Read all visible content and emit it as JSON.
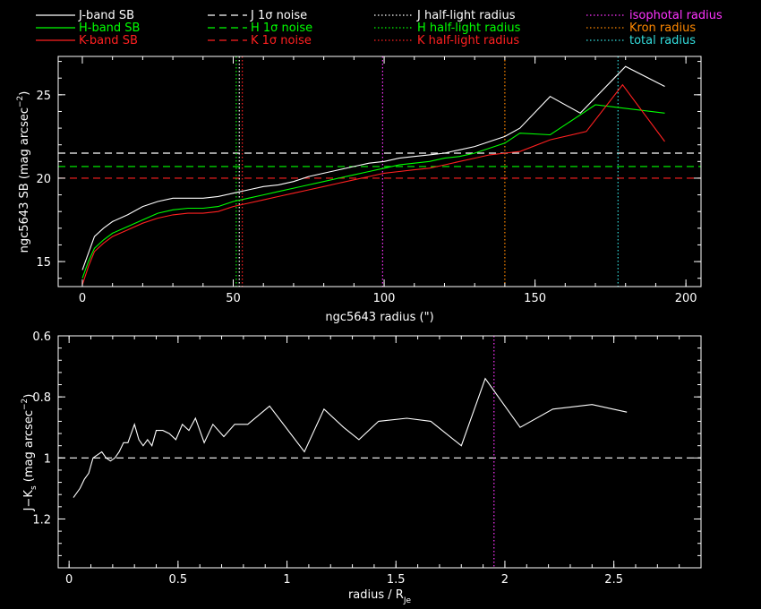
{
  "chart_data": [
    {
      "type": "line",
      "xlabel": "ngc5643 radius (\")",
      "ylabel": "ngc5643 SB (mag arcsec",
      "ylabel_sup": "−2",
      "ylabel_close": ")",
      "xlim": [
        -8,
        205
      ],
      "ylim": [
        27.3,
        13.5
      ],
      "y_inverted": true,
      "xticks": [
        0,
        50,
        100,
        150,
        200
      ],
      "yticks": [
        15,
        20,
        25
      ],
      "series": [
        {
          "name": "J-band SB",
          "color": "#ffffff",
          "style": "solid",
          "points": [
            [
              0,
              14.5
            ],
            [
              2,
              15.5
            ],
            [
              4,
              16.5
            ],
            [
              7,
              17
            ],
            [
              10,
              17.4
            ],
            [
              15,
              17.8
            ],
            [
              20,
              18.3
            ],
            [
              25,
              18.6
            ],
            [
              30,
              18.8
            ],
            [
              35,
              18.8
            ],
            [
              40,
              18.8
            ],
            [
              45,
              18.9
            ],
            [
              50,
              19.1
            ],
            [
              55,
              19.3
            ],
            [
              60,
              19.5
            ],
            [
              65,
              19.6
            ],
            [
              70,
              19.8
            ],
            [
              75,
              20.1
            ],
            [
              80,
              20.3
            ],
            [
              85,
              20.5
            ],
            [
              90,
              20.7
            ],
            [
              95,
              20.9
            ],
            [
              100,
              21.0
            ],
            [
              105,
              21.2
            ],
            [
              110,
              21.3
            ],
            [
              115,
              21.4
            ],
            [
              120,
              21.5
            ],
            [
              125,
              21.7
            ],
            [
              130,
              21.9
            ],
            [
              135,
              22.2
            ],
            [
              140,
              22.5
            ],
            [
              145,
              23
            ],
            [
              155,
              24.9
            ],
            [
              165,
              23.9
            ],
            [
              180,
              26.7
            ],
            [
              193,
              25.5
            ]
          ]
        },
        {
          "name": "H-band SB",
          "color": "#00ff00",
          "style": "solid",
          "points": [
            [
              0,
              14.0
            ],
            [
              2,
              15.0
            ],
            [
              4,
              15.8
            ],
            [
              7,
              16.3
            ],
            [
              10,
              16.7
            ],
            [
              15,
              17.1
            ],
            [
              20,
              17.5
            ],
            [
              25,
              17.9
            ],
            [
              30,
              18.1
            ],
            [
              35,
              18.2
            ],
            [
              40,
              18.2
            ],
            [
              45,
              18.3
            ],
            [
              50,
              18.6
            ],
            [
              55,
              18.8
            ],
            [
              60,
              19.0
            ],
            [
              65,
              19.2
            ],
            [
              70,
              19.4
            ],
            [
              75,
              19.6
            ],
            [
              80,
              19.8
            ],
            [
              85,
              20.0
            ],
            [
              90,
              20.2
            ],
            [
              95,
              20.4
            ],
            [
              100,
              20.6
            ],
            [
              105,
              20.8
            ],
            [
              110,
              20.9
            ],
            [
              115,
              21.0
            ],
            [
              120,
              21.2
            ],
            [
              125,
              21.3
            ],
            [
              130,
              21.5
            ],
            [
              135,
              21.8
            ],
            [
              140,
              22.1
            ],
            [
              145,
              22.7
            ],
            [
              155,
              22.6
            ],
            [
              165,
              23.8
            ],
            [
              170,
              24.4
            ],
            [
              193,
              23.9
            ]
          ]
        },
        {
          "name": "K-band SB",
          "color": "#ff2020",
          "style": "solid",
          "points": [
            [
              0,
              13.6
            ],
            [
              2,
              14.7
            ],
            [
              4,
              15.6
            ],
            [
              7,
              16.1
            ],
            [
              10,
              16.5
            ],
            [
              15,
              16.9
            ],
            [
              20,
              17.3
            ],
            [
              25,
              17.6
            ],
            [
              30,
              17.8
            ],
            [
              35,
              17.9
            ],
            [
              40,
              17.9
            ],
            [
              45,
              18.0
            ],
            [
              50,
              18.3
            ],
            [
              55,
              18.5
            ],
            [
              60,
              18.7
            ],
            [
              65,
              18.9
            ],
            [
              70,
              19.1
            ],
            [
              75,
              19.3
            ],
            [
              80,
              19.5
            ],
            [
              85,
              19.7
            ],
            [
              90,
              19.9
            ],
            [
              95,
              20.1
            ],
            [
              100,
              20.3
            ],
            [
              105,
              20.4
            ],
            [
              110,
              20.5
            ],
            [
              115,
              20.6
            ],
            [
              120,
              20.8
            ],
            [
              125,
              21.0
            ],
            [
              130,
              21.2
            ],
            [
              135,
              21.4
            ],
            [
              140,
              21.5
            ],
            [
              145,
              21.6
            ],
            [
              155,
              22.3
            ],
            [
              167,
              22.8
            ],
            [
              179,
              25.6
            ],
            [
              193,
              22.2
            ]
          ]
        }
      ],
      "hlines": [
        {
          "name": "J 1σ noise",
          "y": 21.5,
          "color": "#ffffff"
        },
        {
          "name": "H 1σ noise",
          "y": 20.7,
          "color": "#00ff00"
        },
        {
          "name": "K 1σ noise",
          "y": 20.0,
          "color": "#ff2020"
        }
      ],
      "vlines": [
        {
          "name": "J half-light radius",
          "x": 52,
          "color": "#ffffff"
        },
        {
          "name": "H half-light radius",
          "x": 51,
          "color": "#00ff00"
        },
        {
          "name": "K half-light radius",
          "x": 53,
          "color": "#ff2020"
        },
        {
          "name": "isophotal radius",
          "x": 99.5,
          "color": "#ff33ff"
        },
        {
          "name": "Kron radius",
          "x": 140,
          "color": "#ff8800"
        },
        {
          "name": "total radius",
          "x": 177.5,
          "color": "#33dddd"
        }
      ],
      "legend": [
        {
          "label": "J-band SB",
          "color": "#ffffff",
          "style": "solid",
          "textColor": "#ffffff"
        },
        {
          "label": "H-band SB",
          "color": "#00ff00",
          "style": "solid",
          "textColor": "#00ff00"
        },
        {
          "label": "K-band SB",
          "color": "#ff2020",
          "style": "solid",
          "textColor": "#ff2020"
        },
        {
          "label": "J 1σ noise",
          "color": "#ffffff",
          "style": "dashed",
          "textColor": "#ffffff"
        },
        {
          "label": "H 1σ noise",
          "color": "#00ff00",
          "style": "dashed",
          "textColor": "#00ff00"
        },
        {
          "label": "K 1σ noise",
          "color": "#ff2020",
          "style": "dashed",
          "textColor": "#ff2020"
        },
        {
          "label": "J half-light radius",
          "color": "#ffffff",
          "style": "dotted",
          "textColor": "#ffffff"
        },
        {
          "label": "H half-light radius",
          "color": "#00ff00",
          "style": "dotted",
          "textColor": "#00ff00"
        },
        {
          "label": "K half-light radius",
          "color": "#ff2020",
          "style": "dotted",
          "textColor": "#ff2020"
        },
        {
          "label": "isophotal radius",
          "color": "#ff33ff",
          "style": "dotted",
          "textColor": "#ff33ff"
        },
        {
          "label": "Kron radius",
          "color": "#ff8800",
          "style": "dotted",
          "textColor": "#ff8800"
        },
        {
          "label": "total radius",
          "color": "#33dddd",
          "style": "dotted",
          "textColor": "#33dddd"
        }
      ]
    },
    {
      "type": "line",
      "xlabel": "radius / R",
      "xlabel_sub": "Je",
      "ylabel": "J−K",
      "ylabel_sub": "s",
      "ylabel_rest": " (mag arcsec",
      "ylabel_sup": "−2",
      "ylabel_close": ")",
      "xlim": [
        -0.05,
        2.9
      ],
      "ylim": [
        0.6,
        1.36
      ],
      "xticks": [
        0,
        0.5,
        1,
        1.5,
        2,
        2.5
      ],
      "xtick_labels": [
        "0",
        "0.5",
        "1",
        "1.5",
        "2",
        "2.5"
      ],
      "yticks": [
        0.6,
        0.8,
        1,
        1.2
      ],
      "ytick_labels": [
        "0.6",
        "0.8",
        "1",
        "1.2"
      ],
      "series": [
        {
          "name": "J−Ks",
          "color": "#ffffff",
          "style": "solid",
          "points": [
            [
              0.02,
              1.13
            ],
            [
              0.05,
              1.1
            ],
            [
              0.07,
              1.07
            ],
            [
              0.09,
              1.05
            ],
            [
              0.11,
              1.0
            ],
            [
              0.13,
              0.99
            ],
            [
              0.15,
              0.98
            ],
            [
              0.17,
              1.0
            ],
            [
              0.19,
              1.01
            ],
            [
              0.21,
              1.0
            ],
            [
              0.23,
              0.98
            ],
            [
              0.25,
              0.95
            ],
            [
              0.27,
              0.95
            ],
            [
              0.3,
              0.89
            ],
            [
              0.32,
              0.94
            ],
            [
              0.34,
              0.96
            ],
            [
              0.36,
              0.94
            ],
            [
              0.38,
              0.96
            ],
            [
              0.4,
              0.91
            ],
            [
              0.43,
              0.91
            ],
            [
              0.46,
              0.92
            ],
            [
              0.49,
              0.94
            ],
            [
              0.52,
              0.89
            ],
            [
              0.55,
              0.91
            ],
            [
              0.58,
              0.87
            ],
            [
              0.62,
              0.95
            ],
            [
              0.66,
              0.89
            ],
            [
              0.71,
              0.93
            ],
            [
              0.76,
              0.89
            ],
            [
              0.82,
              0.89
            ],
            [
              0.92,
              0.83
            ],
            [
              1.08,
              0.98
            ],
            [
              1.17,
              0.84
            ],
            [
              1.26,
              0.9
            ],
            [
              1.33,
              0.94
            ],
            [
              1.42,
              0.88
            ],
            [
              1.55,
              0.87
            ],
            [
              1.66,
              0.88
            ],
            [
              1.8,
              0.96
            ],
            [
              1.91,
              0.74
            ],
            [
              2.07,
              0.9
            ],
            [
              2.22,
              0.84
            ],
            [
              2.4,
              0.825
            ],
            [
              2.56,
              0.85
            ]
          ]
        }
      ],
      "hlines": [
        {
          "name": "reference",
          "y": 1.0,
          "color": "#ffffff"
        }
      ],
      "vlines": [
        {
          "name": "isophotal radius",
          "x": 1.95,
          "color": "#ff33ff"
        }
      ]
    }
  ]
}
